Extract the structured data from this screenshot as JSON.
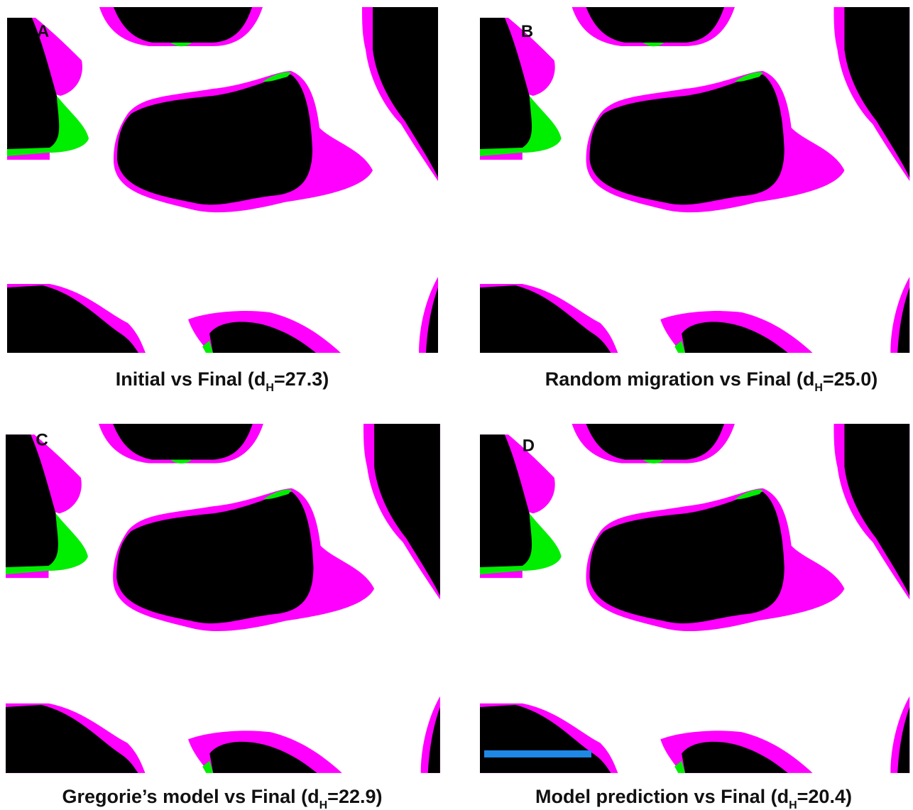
{
  "panels": [
    {
      "label": "A",
      "caption": {
        "text": "Initial vs Final (d",
        "subscript": "H",
        "after": "=27.3)"
      }
    },
    {
      "label": "B",
      "caption": {
        "text": "Random migration vs Final  (d",
        "subscript": "H",
        "after": "=25.0)"
      }
    },
    {
      "label": "C",
      "caption": {
        "text": "Gregorie’s model vs Final (d",
        "subscript": "H",
        "after": "=22.9)"
      }
    },
    {
      "label": "D",
      "caption": {
        "text": "Model prediction vs Final  (d",
        "subscript": "H",
        "after": "=20.4)"
      }
    }
  ]
}
